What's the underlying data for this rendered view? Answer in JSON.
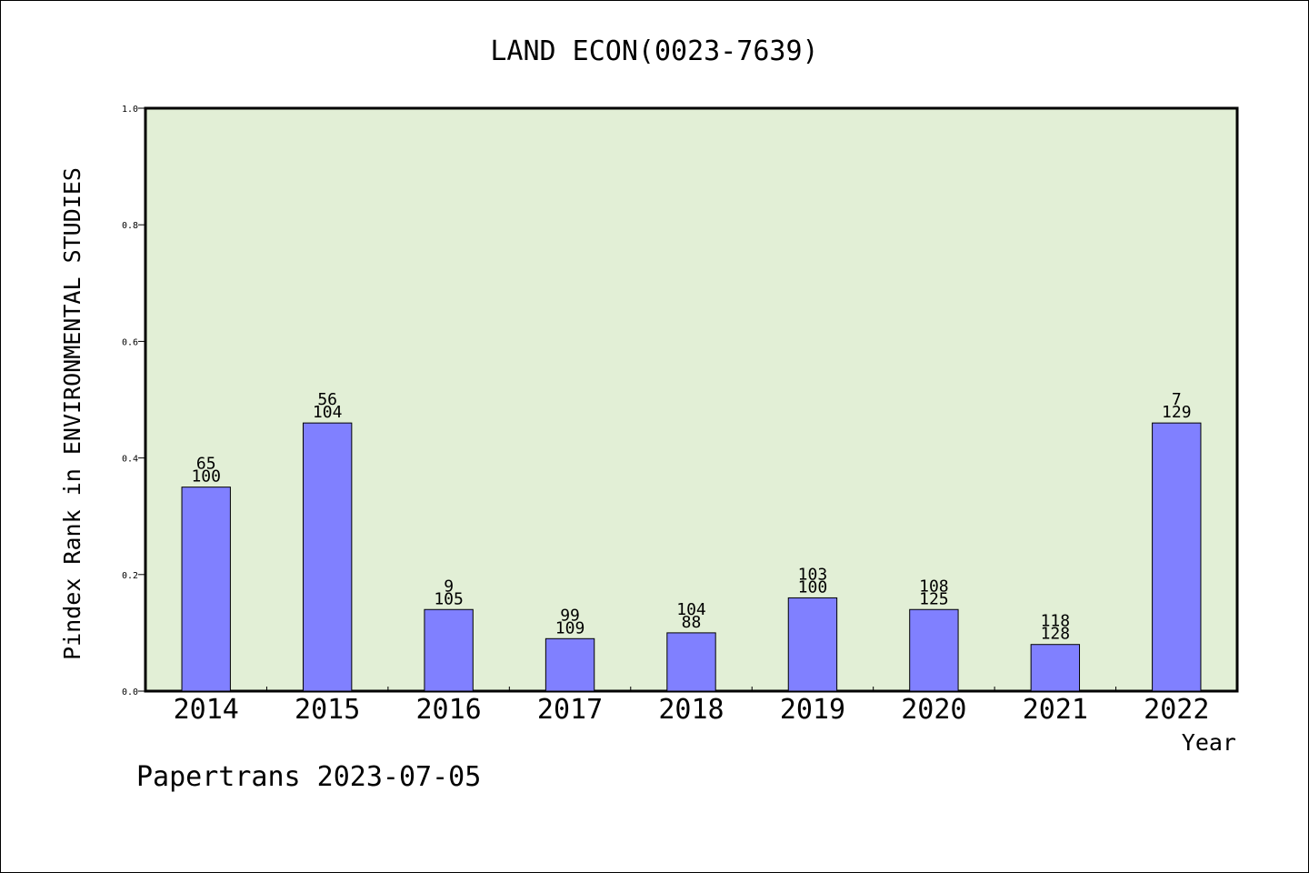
{
  "chart_data": {
    "type": "bar",
    "title": "LAND ECON(0023-7639)",
    "xlabel": "Year",
    "ylabel": "Pindex Rank in ENVIRONMENTAL STUDIES",
    "categories": [
      "2014",
      "2015",
      "2016",
      "2017",
      "2018",
      "2019",
      "2020",
      "2021",
      "2022"
    ],
    "values": [
      0.35,
      0.46,
      0.14,
      0.09,
      0.1,
      0.16,
      0.14,
      0.08,
      0.46
    ],
    "label_top": [
      "65",
      "56",
      "9",
      "99",
      "104",
      "103",
      "108",
      "118",
      "7"
    ],
    "label_bottom": [
      "100",
      "104",
      "105",
      "109",
      "88",
      "100",
      "125",
      "128",
      "129"
    ],
    "ylim": [
      0,
      1.0
    ],
    "yticks": [
      "0.0",
      "0.2",
      "0.4",
      "0.6",
      "0.8",
      "1.0"
    ],
    "grid": false,
    "colors": {
      "plot_background": "#e2efd6",
      "bar": "#8080ff",
      "axis": "#000000"
    }
  },
  "footer": "Papertrans 2023-07-05"
}
